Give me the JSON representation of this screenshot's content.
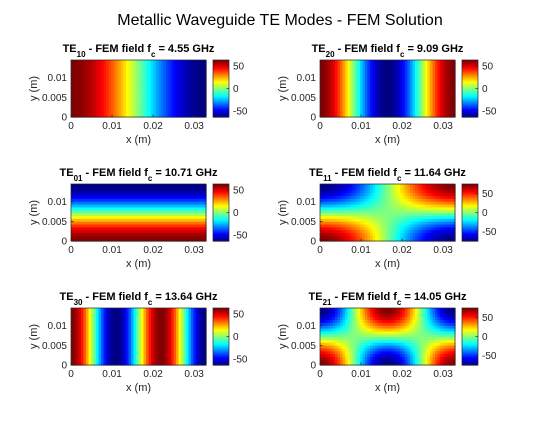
{
  "figure": {
    "title": "Metallic Waveguide TE Modes - FEM Solution"
  },
  "chart_data": [
    {
      "type": "heatmap",
      "title": "TE10 - FEM field fc = 4.55 GHz",
      "title_parts": {
        "mode_prefix": "TE",
        "mode_sub": "10",
        "middle": " - FEM field f",
        "freq_sub": "c",
        "suffix": " = 4.55 GHz"
      },
      "mode": [
        1,
        0
      ],
      "xlabel": "x (m)",
      "ylabel": "y (m)",
      "x_ticks": [
        "0",
        "0.01",
        "0.02",
        "0.03"
      ],
      "y_ticks": [
        "0",
        "0.005",
        "0.01"
      ],
      "xlim": [
        0,
        0.0329
      ],
      "ylim": [
        0,
        0.0145
      ],
      "colorbar": {
        "ticks": [
          "50",
          "0",
          "-50"
        ],
        "values": [
          50,
          0,
          -50
        ],
        "range": [
          -63,
          63
        ]
      },
      "colormap": "jet"
    },
    {
      "type": "heatmap",
      "title": "TE20 - FEM field fc = 9.09 GHz",
      "title_parts": {
        "mode_prefix": "TE",
        "mode_sub": "20",
        "middle": " - FEM field f",
        "freq_sub": "c",
        "suffix": " = 9.09 GHz"
      },
      "mode": [
        2,
        0
      ],
      "xlabel": "x (m)",
      "ylabel": "y (m)",
      "x_ticks": [
        "0",
        "0.01",
        "0.02",
        "0.03"
      ],
      "y_ticks": [
        "0",
        "0.005",
        "0.01"
      ],
      "xlim": [
        0,
        0.0329
      ],
      "ylim": [
        0,
        0.0145
      ],
      "colorbar": {
        "ticks": [
          "50",
          "0",
          "-50"
        ],
        "values": [
          50,
          0,
          -50
        ],
        "range": [
          -63,
          63
        ]
      },
      "colormap": "jet"
    },
    {
      "type": "heatmap",
      "title": "TE01 - FEM field fc = 10.71 GHz",
      "title_parts": {
        "mode_prefix": "TE",
        "mode_sub": "01",
        "middle": " - FEM field f",
        "freq_sub": "c",
        "suffix": " = 10.71 GHz"
      },
      "mode": [
        0,
        1
      ],
      "xlabel": "x (m)",
      "ylabel": "y (m)",
      "x_ticks": [
        "0",
        "0.01",
        "0.02",
        "0.03"
      ],
      "y_ticks": [
        "0",
        "0.005",
        "0.01"
      ],
      "xlim": [
        0,
        0.0329
      ],
      "ylim": [
        0,
        0.0145
      ],
      "colorbar": {
        "ticks": [
          "50",
          "0",
          "-50"
        ],
        "values": [
          50,
          0,
          -50
        ],
        "range": [
          -63,
          63
        ]
      },
      "colormap": "jet"
    },
    {
      "type": "heatmap",
      "title": "TE11 - FEM field fc = 11.64 GHz",
      "title_parts": {
        "mode_prefix": "TE",
        "mode_sub": "11",
        "middle": " - FEM field f",
        "freq_sub": "c",
        "suffix": " = 11.64 GHz"
      },
      "mode": [
        1,
        1
      ],
      "xlabel": "x (m)",
      "ylabel": "y (m)",
      "x_ticks": [
        "0",
        "0.01",
        "0.02",
        "0.03"
      ],
      "y_ticks": [
        "0",
        "0.005",
        "0.01"
      ],
      "xlim": [
        0,
        0.0329
      ],
      "ylim": [
        0,
        0.0145
      ],
      "colorbar": {
        "ticks": [
          "50",
          "0",
          "-50"
        ],
        "values": [
          50,
          0,
          -50
        ],
        "range": [
          -75,
          75
        ]
      },
      "colormap": "jet"
    },
    {
      "type": "heatmap",
      "title": "TE30 - FEM field fc = 13.64 GHz",
      "title_parts": {
        "mode_prefix": "TE",
        "mode_sub": "30",
        "middle": " - FEM field f",
        "freq_sub": "c",
        "suffix": " = 13.64 GHz"
      },
      "mode": [
        3,
        0
      ],
      "xlabel": "x (m)",
      "ylabel": "y (m)",
      "x_ticks": [
        "0",
        "0.01",
        "0.02",
        "0.03"
      ],
      "y_ticks": [
        "0",
        "0.005",
        "0.01"
      ],
      "xlim": [
        0,
        0.0329
      ],
      "ylim": [
        0,
        0.0145
      ],
      "colorbar": {
        "ticks": [
          "50",
          "0",
          "-50"
        ],
        "values": [
          50,
          0,
          -50
        ],
        "range": [
          -63,
          63
        ]
      },
      "colormap": "jet"
    },
    {
      "type": "heatmap",
      "title": "TE21 - FEM field fc = 14.05 GHz",
      "title_parts": {
        "mode_prefix": "TE",
        "mode_sub": "21",
        "middle": " - FEM field f",
        "freq_sub": "c",
        "suffix": " = 14.05 GHz"
      },
      "mode": [
        2,
        1
      ],
      "xlabel": "x (m)",
      "ylabel": "y (m)",
      "x_ticks": [
        "0",
        "0.01",
        "0.02",
        "0.03"
      ],
      "y_ticks": [
        "0",
        "0.005",
        "0.01"
      ],
      "xlim": [
        0,
        0.0329
      ],
      "ylim": [
        0,
        0.0145
      ],
      "colorbar": {
        "ticks": [
          "50",
          "0",
          "-50"
        ],
        "values": [
          50,
          0,
          -50
        ],
        "range": [
          -75,
          75
        ]
      },
      "colormap": "jet"
    }
  ]
}
